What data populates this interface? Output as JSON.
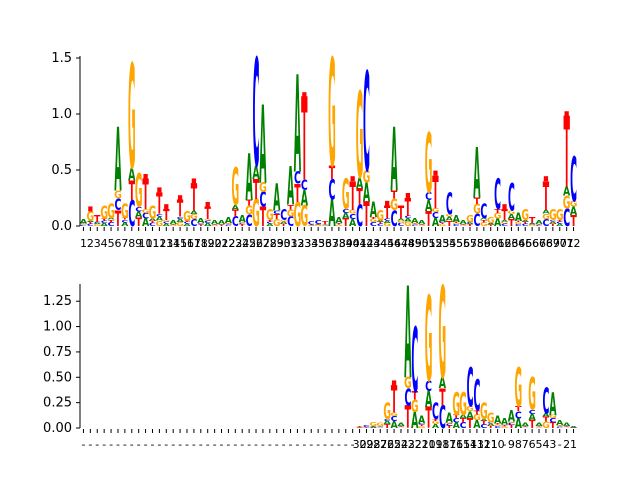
{
  "chart_data": [
    {
      "type": "sequence-logo",
      "ylim": [
        0,
        1.5
      ],
      "yticks": [
        "0.0",
        "0.5",
        "1.0",
        "1.5"
      ],
      "x_tick_labels": [
        "1",
        "2",
        "3",
        "4",
        "5",
        "6",
        "7",
        "8",
        "9",
        "10",
        "11",
        "12",
        "13",
        "14",
        "15",
        "16",
        "17",
        "18",
        "19",
        "20",
        "21",
        "22",
        "23",
        "24",
        "25",
        "26",
        "27",
        "28",
        "29",
        "30",
        "31",
        "32",
        "33",
        "34",
        "35",
        "36",
        "37",
        "38",
        "39",
        "40",
        "41",
        "42",
        "43",
        "44",
        "45",
        "46",
        "47",
        "48",
        "49",
        "50",
        "51",
        "52",
        "53",
        "54",
        "55",
        "56",
        "57",
        "58",
        "59",
        "60",
        "61",
        "62",
        "63",
        "64",
        "65",
        "66",
        "67",
        "68",
        "69",
        "70",
        "71",
        "72"
      ],
      "positions": [
        {
          "total": 0.06,
          "top": "A",
          "gap": false
        },
        {
          "total": 0.13,
          "top": "G",
          "gap": true
        },
        {
          "total": 0.1,
          "top": "T",
          "gap": false
        },
        {
          "total": 0.18,
          "top": "G",
          "gap": false
        },
        {
          "total": 0.2,
          "top": "G",
          "gap": false
        },
        {
          "total": 0.88,
          "top": "A",
          "gap": false
        },
        {
          "total": 0.2,
          "top": "G",
          "gap": false
        },
        {
          "total": 1.45,
          "top": "G",
          "gap": false
        },
        {
          "total": 0.47,
          "top": "G",
          "gap": false
        },
        {
          "total": 0.42,
          "top": "T",
          "gap": true
        },
        {
          "total": 0.18,
          "top": "G",
          "gap": false
        },
        {
          "total": 0.3,
          "top": "T",
          "gap": true
        },
        {
          "total": 0.15,
          "top": "T",
          "gap": true
        },
        {
          "total": 0.05,
          "top": "A",
          "gap": false
        },
        {
          "total": 0.23,
          "top": "T",
          "gap": true
        },
        {
          "total": 0.13,
          "top": "G",
          "gap": false
        },
        {
          "total": 0.38,
          "top": "T",
          "gap": true
        },
        {
          "total": 0.07,
          "top": "A",
          "gap": false
        },
        {
          "total": 0.17,
          "top": "T",
          "gap": true
        },
        {
          "total": 0.05,
          "top": "A",
          "gap": false
        },
        {
          "total": 0.05,
          "top": "A",
          "gap": false
        },
        {
          "total": 0.08,
          "top": "A",
          "gap": false
        },
        {
          "total": 0.52,
          "top": "G",
          "gap": false
        },
        {
          "total": 0.1,
          "top": "A",
          "gap": false
        },
        {
          "total": 0.65,
          "top": "A",
          "gap": false
        },
        {
          "total": 1.5,
          "top": "C",
          "gap": false
        },
        {
          "total": 1.08,
          "top": "A",
          "gap": false
        },
        {
          "total": 0.15,
          "top": "G",
          "gap": false
        },
        {
          "total": 0.38,
          "top": "A",
          "gap": false
        },
        {
          "total": 0.15,
          "top": "C",
          "gap": false
        },
        {
          "total": 0.53,
          "top": "A",
          "gap": false
        },
        {
          "total": 1.35,
          "top": "A",
          "gap": false
        },
        {
          "total": 1.15,
          "top": "T",
          "gap": true
        },
        {
          "total": 0.04,
          "top": "C",
          "gap": false
        },
        {
          "total": 0.05,
          "top": "C",
          "gap": false
        },
        {
          "total": 0.04,
          "top": "T",
          "gap": false
        },
        {
          "total": 1.5,
          "top": "G",
          "gap": false
        },
        {
          "total": 0.08,
          "top": "A",
          "gap": false
        },
        {
          "total": 0.42,
          "top": "G",
          "gap": false
        },
        {
          "total": 0.4,
          "top": "T",
          "gap": true
        },
        {
          "total": 1.2,
          "top": "G",
          "gap": false
        },
        {
          "total": 1.38,
          "top": "C",
          "gap": false
        },
        {
          "total": 0.22,
          "top": "A",
          "gap": false
        },
        {
          "total": 0.14,
          "top": "G",
          "gap": false
        },
        {
          "total": 0.18,
          "top": "T",
          "gap": true
        },
        {
          "total": 0.88,
          "top": "A",
          "gap": false
        },
        {
          "total": 0.18,
          "top": "T",
          "gap": false
        },
        {
          "total": 0.25,
          "top": "T",
          "gap": true
        },
        {
          "total": 0.07,
          "top": "A",
          "gap": false
        },
        {
          "total": 0.05,
          "top": "A",
          "gap": false
        },
        {
          "total": 0.83,
          "top": "G",
          "gap": false
        },
        {
          "total": 0.45,
          "top": "T",
          "gap": true
        },
        {
          "total": 0.1,
          "top": "A",
          "gap": false
        },
        {
          "total": 0.3,
          "top": "C",
          "gap": false
        },
        {
          "total": 0.1,
          "top": "A",
          "gap": false
        },
        {
          "total": 0.05,
          "top": "A",
          "gap": false
        },
        {
          "total": 0.1,
          "top": "G",
          "gap": false
        },
        {
          "total": 0.7,
          "top": "A",
          "gap": false
        },
        {
          "total": 0.2,
          "top": "C",
          "gap": false
        },
        {
          "total": 0.08,
          "top": "G",
          "gap": false
        },
        {
          "total": 0.42,
          "top": "C",
          "gap": false
        },
        {
          "total": 0.15,
          "top": "T",
          "gap": true
        },
        {
          "total": 0.38,
          "top": "C",
          "gap": false
        },
        {
          "total": 0.12,
          "top": "A",
          "gap": false
        },
        {
          "total": 0.15,
          "top": "G",
          "gap": false
        },
        {
          "total": 0.08,
          "top": "T",
          "gap": false
        },
        {
          "total": 0.05,
          "top": "A",
          "gap": false
        },
        {
          "total": 0.4,
          "top": "T",
          "gap": true
        },
        {
          "total": 0.15,
          "top": "G",
          "gap": false
        },
        {
          "total": 0.15,
          "top": "G",
          "gap": false
        },
        {
          "total": 0.98,
          "top": "T",
          "gap": true
        },
        {
          "total": 0.62,
          "top": "C",
          "gap": false
        }
      ]
    },
    {
      "type": "sequence-logo",
      "ylim": [
        0,
        1.4
      ],
      "yticks": [
        "0.00",
        "0.25",
        "0.50",
        "0.75",
        "1.00",
        "1.25"
      ],
      "x_tick_labels": [
        "-",
        "-",
        "-",
        "-",
        "-",
        "-",
        "-",
        "-",
        "-",
        "-",
        "-",
        "-",
        "-",
        "-",
        "-",
        "-",
        "-",
        "-",
        "-",
        "-",
        "-",
        "-",
        "-",
        "-",
        "-",
        "-",
        "-",
        "-",
        "-",
        "-",
        "-",
        "-",
        "-",
        "-",
        "-",
        "-",
        "-",
        "-",
        "-",
        "-",
        "30",
        "29",
        "28",
        "27",
        "26",
        "25",
        "24",
        "23",
        "22",
        "21",
        "20",
        "19",
        "18",
        "17",
        "16",
        "15",
        "14",
        "13",
        "12",
        "11",
        "10",
        "-",
        "9",
        "8",
        "7",
        "6",
        "5",
        "4",
        "3",
        "-",
        "2",
        "1"
      ],
      "positions": [
        {
          "total": 0,
          "top": "",
          "gap": false
        },
        {
          "total": 0,
          "top": "",
          "gap": false
        },
        {
          "total": 0,
          "top": "",
          "gap": false
        },
        {
          "total": 0,
          "top": "",
          "gap": false
        },
        {
          "total": 0,
          "top": "",
          "gap": false
        },
        {
          "total": 0,
          "top": "",
          "gap": false
        },
        {
          "total": 0,
          "top": "",
          "gap": false
        },
        {
          "total": 0,
          "top": "",
          "gap": false
        },
        {
          "total": 0,
          "top": "",
          "gap": false
        },
        {
          "total": 0,
          "top": "",
          "gap": false
        },
        {
          "total": 0,
          "top": "",
          "gap": false
        },
        {
          "total": 0,
          "top": "",
          "gap": false
        },
        {
          "total": 0,
          "top": "",
          "gap": false
        },
        {
          "total": 0,
          "top": "",
          "gap": false
        },
        {
          "total": 0,
          "top": "",
          "gap": false
        },
        {
          "total": 0,
          "top": "",
          "gap": false
        },
        {
          "total": 0,
          "top": "",
          "gap": false
        },
        {
          "total": 0,
          "top": "",
          "gap": false
        },
        {
          "total": 0,
          "top": "",
          "gap": false
        },
        {
          "total": 0,
          "top": "",
          "gap": false
        },
        {
          "total": 0,
          "top": "",
          "gap": false
        },
        {
          "total": 0,
          "top": "",
          "gap": false
        },
        {
          "total": 0,
          "top": "",
          "gap": false
        },
        {
          "total": 0,
          "top": "",
          "gap": false
        },
        {
          "total": 0,
          "top": "",
          "gap": false
        },
        {
          "total": 0,
          "top": "",
          "gap": false
        },
        {
          "total": 0,
          "top": "",
          "gap": false
        },
        {
          "total": 0,
          "top": "",
          "gap": false
        },
        {
          "total": 0,
          "top": "",
          "gap": false
        },
        {
          "total": 0,
          "top": "",
          "gap": false
        },
        {
          "total": 0,
          "top": "",
          "gap": false
        },
        {
          "total": 0,
          "top": "",
          "gap": false
        },
        {
          "total": 0,
          "top": "",
          "gap": false
        },
        {
          "total": 0,
          "top": "",
          "gap": false
        },
        {
          "total": 0,
          "top": "",
          "gap": false
        },
        {
          "total": 0,
          "top": "",
          "gap": false
        },
        {
          "total": 0,
          "top": "",
          "gap": false
        },
        {
          "total": 0,
          "top": "",
          "gap": false
        },
        {
          "total": 0,
          "top": "",
          "gap": false
        },
        {
          "total": 0,
          "top": "",
          "gap": false
        },
        {
          "total": 0.02,
          "top": "T",
          "gap": false
        },
        {
          "total": 0.03,
          "top": "C",
          "gap": false
        },
        {
          "total": 0.06,
          "top": "G",
          "gap": false
        },
        {
          "total": 0.05,
          "top": "G",
          "gap": false
        },
        {
          "total": 0.25,
          "top": "G",
          "gap": false
        },
        {
          "total": 0.42,
          "top": "T",
          "gap": true
        },
        {
          "total": 0.05,
          "top": "A",
          "gap": false
        },
        {
          "total": 1.4,
          "top": "A",
          "gap": false
        },
        {
          "total": 1.0,
          "top": "C",
          "gap": false
        },
        {
          "total": 0.12,
          "top": "A",
          "gap": false
        },
        {
          "total": 1.3,
          "top": "G",
          "gap": false
        },
        {
          "total": 0.25,
          "top": "C",
          "gap": false
        },
        {
          "total": 1.4,
          "top": "G",
          "gap": false
        },
        {
          "total": 0.15,
          "top": "A",
          "gap": false
        },
        {
          "total": 0.35,
          "top": "G",
          "gap": false
        },
        {
          "total": 0.35,
          "top": "G",
          "gap": false
        },
        {
          "total": 0.6,
          "top": "C",
          "gap": false
        },
        {
          "total": 0.48,
          "top": "C",
          "gap": false
        },
        {
          "total": 0.25,
          "top": "G",
          "gap": false
        },
        {
          "total": 0.15,
          "top": "G",
          "gap": false
        },
        {
          "total": 0.12,
          "top": "A",
          "gap": false
        },
        {
          "total": 0.1,
          "top": "A",
          "gap": false
        },
        {
          "total": 0.18,
          "top": "A",
          "gap": false
        },
        {
          "total": 0.6,
          "top": "G",
          "gap": false
        },
        {
          "total": 0.05,
          "top": "A",
          "gap": false
        },
        {
          "total": 0.5,
          "top": "G",
          "gap": false
        },
        {
          "total": 0.05,
          "top": "A",
          "gap": false
        },
        {
          "total": 0.4,
          "top": "C",
          "gap": false
        },
        {
          "total": 0.35,
          "top": "A",
          "gap": false
        },
        {
          "total": 0.08,
          "top": "A",
          "gap": false
        },
        {
          "total": 0.05,
          "top": "A",
          "gap": false
        },
        {
          "total": 0.02,
          "top": "A",
          "gap": false
        }
      ]
    }
  ],
  "colors": {
    "A": "#008000",
    "C": "#0000ff",
    "G": "#ffa500",
    "T": "#ff0000",
    "axis": "#000000"
  }
}
